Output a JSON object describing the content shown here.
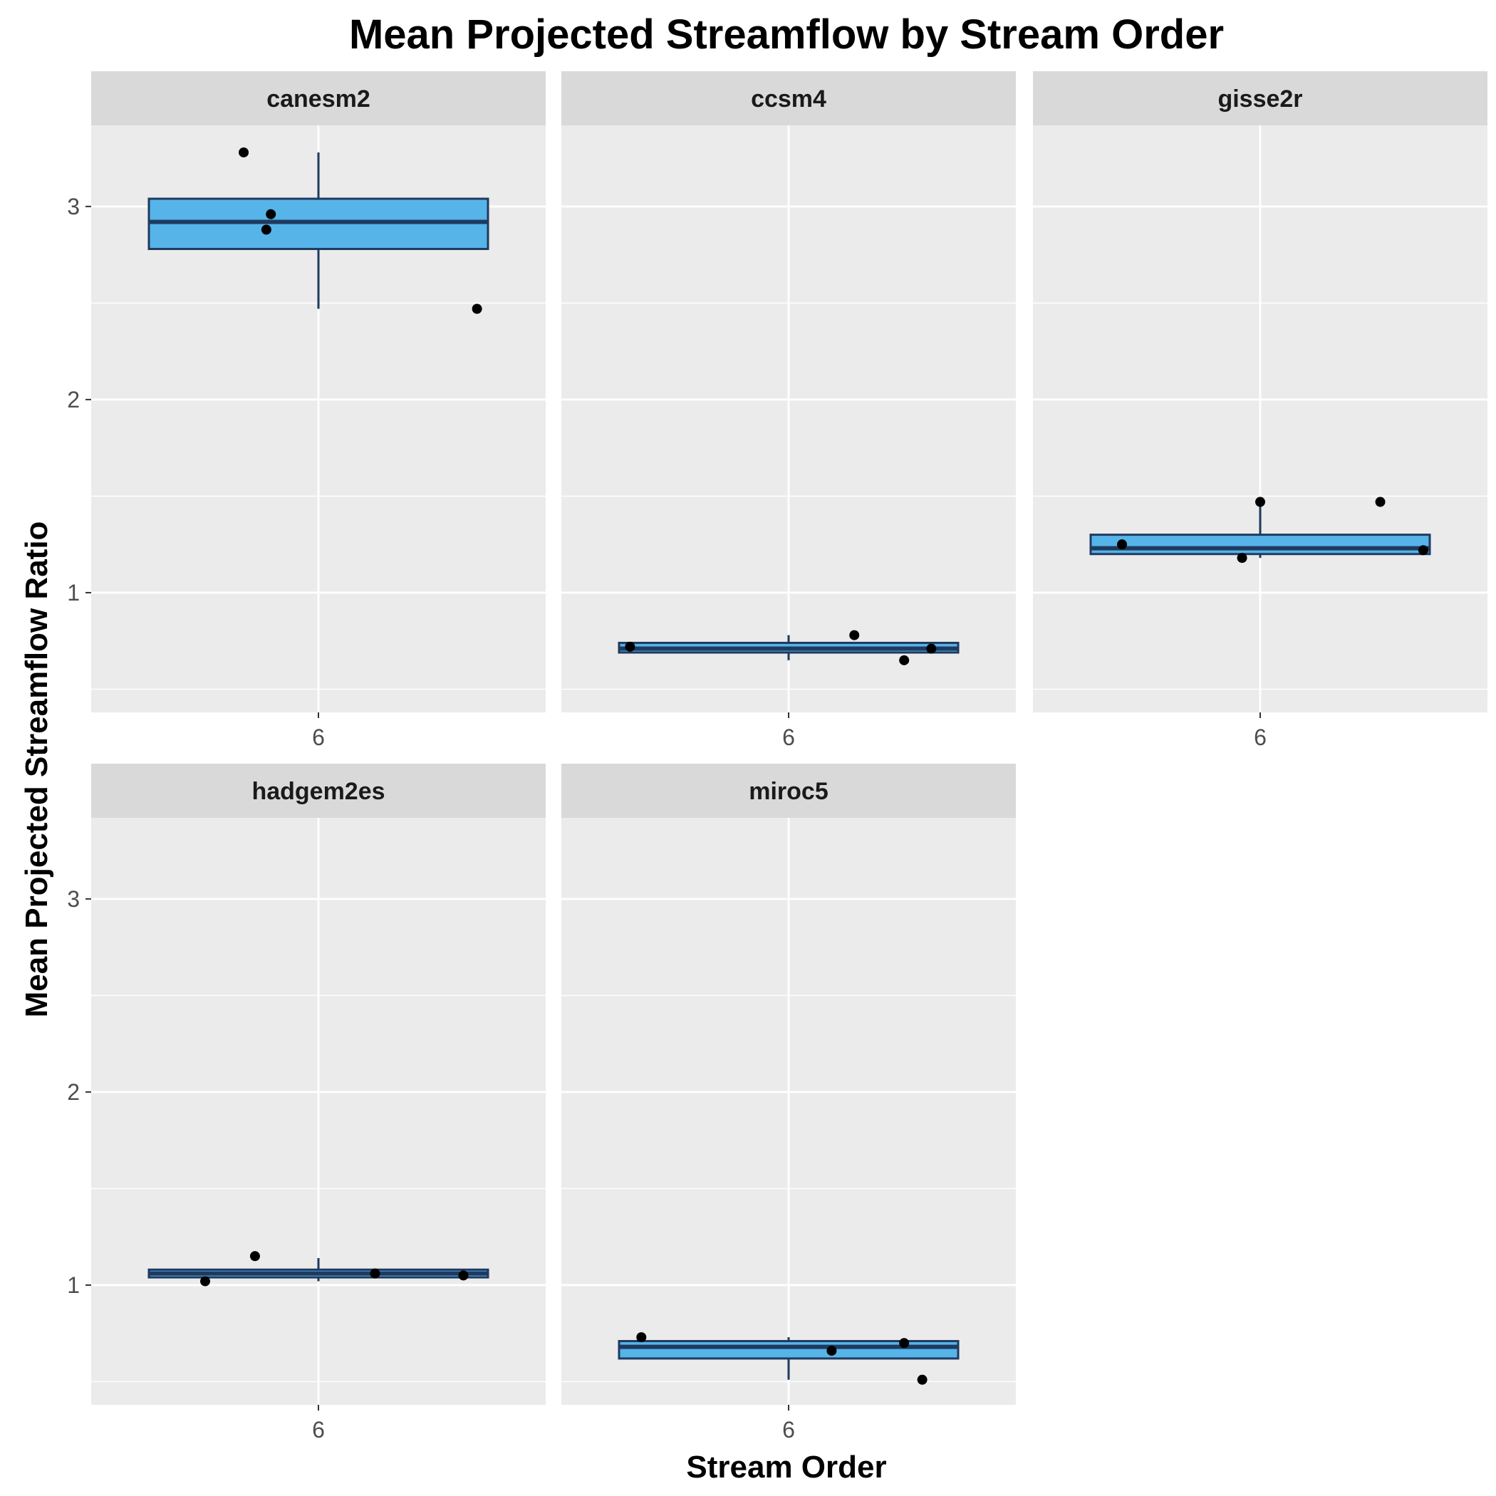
{
  "chart_data": {
    "type": "box",
    "title": "Mean Projected Streamflow by Stream Order",
    "xlabel": "Stream Order",
    "ylabel": "Mean Projected Streamflow Ratio",
    "ylim": [
      0.38,
      3.42
    ],
    "y_ticks": [
      1,
      2,
      3
    ],
    "x_tick_label": "6",
    "grid": true,
    "colors": {
      "panel_bg": "#EBEBEB",
      "strip_bg": "#D9D9D9",
      "grid": "#FFFFFF",
      "box_fill": "#56B4E9",
      "box_line": "#1F3A5F",
      "point": "#000000"
    },
    "panels": [
      {
        "name": "canesm2",
        "box": {
          "whisker_low": 2.47,
          "q1": 2.78,
          "median": 2.92,
          "q3": 3.04,
          "whisker_high": 3.28
        },
        "points": [
          {
            "jitter": -0.33,
            "y": 3.28
          },
          {
            "jitter": -0.23,
            "y": 2.88
          },
          {
            "jitter": -0.21,
            "y": 2.96
          },
          {
            "jitter": 0.7,
            "y": 2.47
          }
        ]
      },
      {
        "name": "ccsm4",
        "box": {
          "whisker_low": 0.65,
          "q1": 0.69,
          "median": 0.71,
          "q3": 0.74,
          "whisker_high": 0.78
        },
        "points": [
          {
            "jitter": -0.7,
            "y": 0.72
          },
          {
            "jitter": 0.29,
            "y": 0.78
          },
          {
            "jitter": 0.51,
            "y": 0.65
          },
          {
            "jitter": 0.63,
            "y": 0.71
          }
        ]
      },
      {
        "name": "gisse2r",
        "box": {
          "whisker_low": 1.18,
          "q1": 1.2,
          "median": 1.23,
          "q3": 1.3,
          "whisker_high": 1.47
        },
        "points": [
          {
            "jitter": -0.61,
            "y": 1.25
          },
          {
            "jitter": -0.08,
            "y": 1.18
          },
          {
            "jitter": 0.0,
            "y": 1.47
          },
          {
            "jitter": 0.53,
            "y": 1.47
          },
          {
            "jitter": 0.72,
            "y": 1.22
          }
        ]
      },
      {
        "name": "hadgem2es",
        "box": {
          "whisker_low": 1.02,
          "q1": 1.04,
          "median": 1.06,
          "q3": 1.08,
          "whisker_high": 1.14
        },
        "points": [
          {
            "jitter": -0.5,
            "y": 1.02
          },
          {
            "jitter": -0.28,
            "y": 1.15
          },
          {
            "jitter": 0.25,
            "y": 1.06
          },
          {
            "jitter": 0.64,
            "y": 1.05
          }
        ]
      },
      {
        "name": "miroc5",
        "box": {
          "whisker_low": 0.51,
          "q1": 0.62,
          "median": 0.68,
          "q3": 0.71,
          "whisker_high": 0.73
        },
        "points": [
          {
            "jitter": -0.65,
            "y": 0.73
          },
          {
            "jitter": 0.19,
            "y": 0.66
          },
          {
            "jitter": 0.51,
            "y": 0.7
          },
          {
            "jitter": 0.59,
            "y": 0.51
          }
        ]
      }
    ]
  }
}
